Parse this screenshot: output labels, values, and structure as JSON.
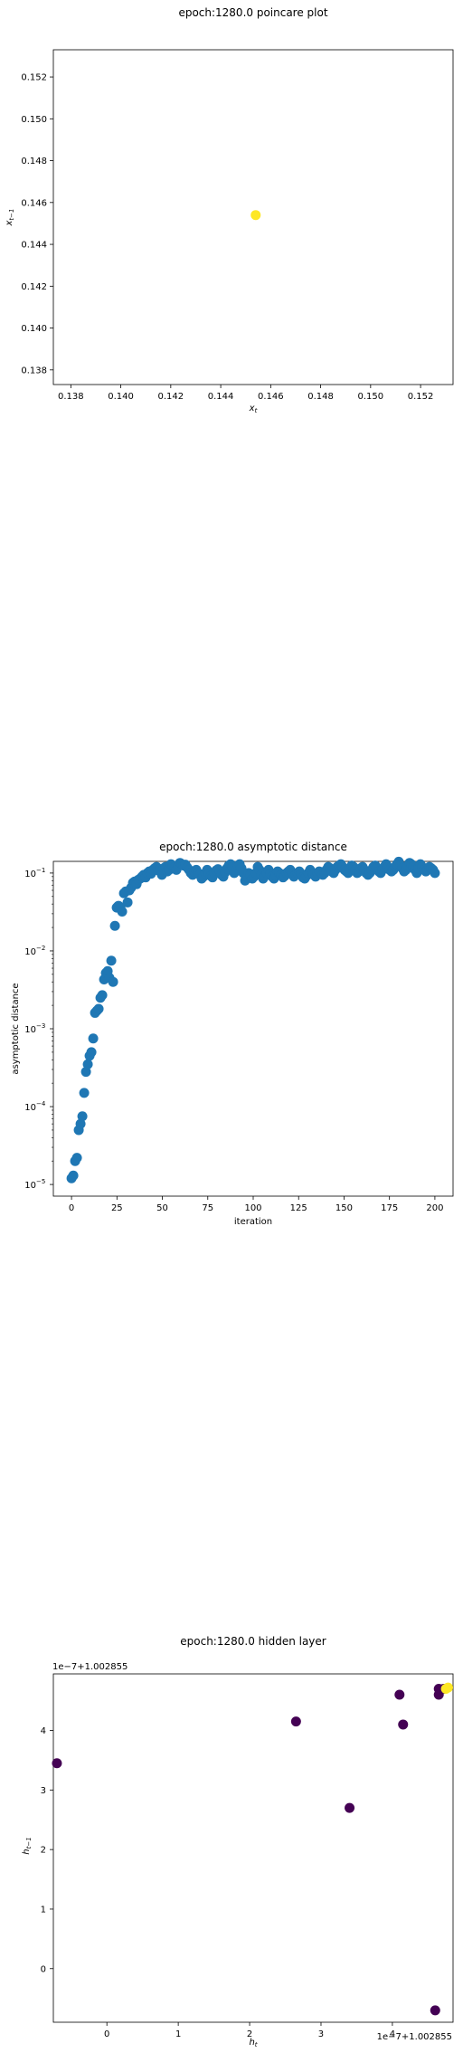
{
  "charts": [
    {
      "type": "scatter",
      "title": "epoch:1280.0 poincare plot",
      "xlabel": "x_t",
      "ylabel": "x_{t-1}",
      "xlim": [
        0.1373,
        0.1533
      ],
      "ylim": [
        0.1373,
        0.1533
      ],
      "xticks": [
        "0.138",
        "0.140",
        "0.142",
        "0.144",
        "0.146",
        "0.148",
        "0.150",
        "0.152"
      ],
      "yticks": [
        "0.138",
        "0.140",
        "0.142",
        "0.144",
        "0.146",
        "0.148",
        "0.150",
        "0.152"
      ],
      "tick_values": [
        0.138,
        0.14,
        0.142,
        0.144,
        0.146,
        0.148,
        0.15,
        0.152
      ],
      "point_color": "#fde725",
      "points": [
        {
          "x": 0.1454,
          "y": 0.1454
        }
      ]
    },
    {
      "type": "scatter",
      "title": "epoch:1280.0 asymptotic distance",
      "xlabel": "iteration",
      "ylabel": "asymptotic distance",
      "xlim": [
        -10,
        210
      ],
      "ylim_log10": [
        -5.15,
        -0.85
      ],
      "yscale": "log",
      "xticks": [
        "0",
        "25",
        "50",
        "75",
        "100",
        "125",
        "150",
        "175",
        "200"
      ],
      "xtick_values": [
        0,
        25,
        50,
        75,
        100,
        125,
        150,
        175,
        200
      ],
      "yticks": [
        "10",
        "10",
        "10",
        "10",
        "10"
      ],
      "ytick_exponents": [
        "−5",
        "−4",
        "−3",
        "−2",
        "−1"
      ],
      "ytick_values": [
        -5,
        -4,
        -3,
        -2,
        -1
      ],
      "point_color": "#1f77b4",
      "iterations": [
        0,
        200
      ],
      "values": [
        1.2e-05,
        1.3e-05,
        2e-05,
        2.2e-05,
        5e-05,
        6e-05,
        7.5e-05,
        0.00015,
        0.00028,
        0.00035,
        0.00045,
        0.0005,
        0.00075,
        0.0016,
        0.0017,
        0.0018,
        0.0025,
        0.0027,
        0.0043,
        0.0052,
        0.0055,
        0.0045,
        0.0075,
        0.004,
        0.021,
        0.036,
        0.038,
        0.036,
        0.032,
        0.055,
        0.058,
        0.042,
        0.06,
        0.065,
        0.075,
        0.078,
        0.072,
        0.082,
        0.085,
        0.09,
        0.095,
        0.088,
        0.1,
        0.105,
        0.098,
        0.11,
        0.115,
        0.12,
        0.108,
        0.112,
        0.095,
        0.115,
        0.12,
        0.105,
        0.11,
        0.13,
        0.125,
        0.118,
        0.11,
        0.122,
        0.135,
        0.13,
        0.125,
        0.128,
        0.118,
        0.11,
        0.1,
        0.095,
        0.105,
        0.11,
        0.1,
        0.095,
        0.085,
        0.09,
        0.1,
        0.11,
        0.098,
        0.092,
        0.088,
        0.1,
        0.108,
        0.112,
        0.105,
        0.095,
        0.09,
        0.102,
        0.115,
        0.125,
        0.13,
        0.12,
        0.1,
        0.11,
        0.125,
        0.13,
        0.115,
        0.1,
        0.08,
        0.09,
        0.1,
        0.095,
        0.085,
        0.09,
        0.1,
        0.12,
        0.11,
        0.095,
        0.085,
        0.092,
        0.1,
        0.11,
        0.098,
        0.09,
        0.085,
        0.095,
        0.105,
        0.1,
        0.095,
        0.088,
        0.092,
        0.1,
        0.105,
        0.11,
        0.1,
        0.09,
        0.095,
        0.1,
        0.105,
        0.098,
        0.088,
        0.085,
        0.092,
        0.1,
        0.11,
        0.1,
        0.095,
        0.09,
        0.1,
        0.105,
        0.1,
        0.095,
        0.1,
        0.11,
        0.12,
        0.115,
        0.105,
        0.1,
        0.11,
        0.12,
        0.125,
        0.13,
        0.12,
        0.11,
        0.105,
        0.1,
        0.115,
        0.125,
        0.12,
        0.11,
        0.1,
        0.105,
        0.115,
        0.12,
        0.11,
        0.1,
        0.095,
        0.1,
        0.11,
        0.12,
        0.125,
        0.115,
        0.105,
        0.1,
        0.11,
        0.12,
        0.13,
        0.12,
        0.11,
        0.105,
        0.11,
        0.12,
        0.13,
        0.14,
        0.125,
        0.115,
        0.105,
        0.11,
        0.125,
        0.135,
        0.13,
        0.12,
        0.11,
        0.1,
        0.115,
        0.13,
        0.12,
        0.11,
        0.105,
        0.11,
        0.12,
        0.115,
        0.11,
        0.1
      ]
    },
    {
      "type": "scatter",
      "title": "epoch:1280.0 hidden layer",
      "xlabel": "h_t",
      "ylabel": "h_{t-1}",
      "offset_label": "1e−7+1.002855",
      "xlim": [
        -0.75,
        4.85
      ],
      "ylim": [
        -0.9,
        4.95
      ],
      "xticks": [
        "0",
        "1",
        "2",
        "3",
        "4"
      ],
      "yticks": [
        "0",
        "1",
        "2",
        "3",
        "4"
      ],
      "tick_values": [
        0,
        1,
        2,
        3,
        4
      ],
      "colors": {
        "dark": "#440154",
        "bright": "#fde725"
      },
      "points": [
        {
          "x": -0.7,
          "y": 3.45,
          "c": "dark"
        },
        {
          "x": 2.65,
          "y": 4.15,
          "c": "dark"
        },
        {
          "x": 3.4,
          "y": 2.7,
          "c": "dark"
        },
        {
          "x": 4.1,
          "y": 4.6,
          "c": "dark"
        },
        {
          "x": 4.15,
          "y": 4.1,
          "c": "dark"
        },
        {
          "x": 4.6,
          "y": -0.7,
          "c": "dark"
        },
        {
          "x": 4.65,
          "y": 4.6,
          "c": "dark"
        },
        {
          "x": 4.65,
          "y": 4.7,
          "c": "dark"
        },
        {
          "x": 4.72,
          "y": 4.7,
          "c": "dark"
        },
        {
          "x": 4.75,
          "y": 4.7,
          "c": "bright"
        },
        {
          "x": 4.78,
          "y": 4.72,
          "c": "bright"
        }
      ]
    }
  ]
}
